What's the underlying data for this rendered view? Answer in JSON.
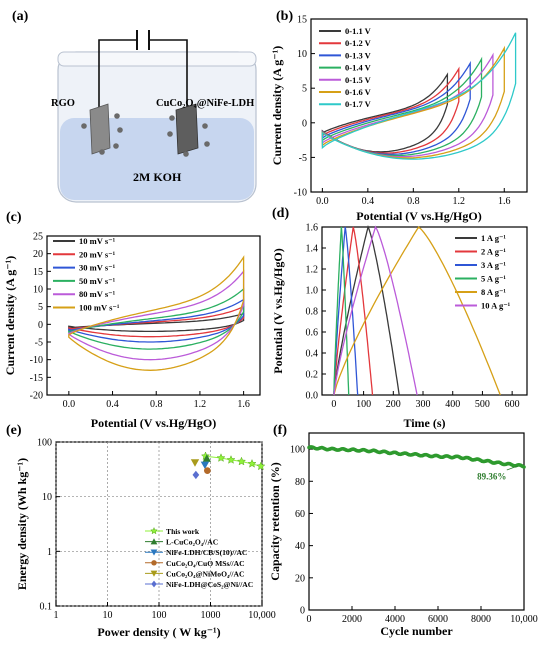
{
  "panel_labels": [
    "(a)",
    "(b)",
    "(c)",
    "(d)",
    "(e)",
    "(f)"
  ],
  "panel_a": {
    "electrode_left": "RGO",
    "electrode_right": "CuCo₂O₄@NiFe-LDH",
    "electrolyte": "2M KOH"
  },
  "colors": {
    "cv_b": [
      "#3a3a3a",
      "#e3383c",
      "#2f56d6",
      "#2bb061",
      "#bb5bd9",
      "#d6a017",
      "#2ec9c9"
    ],
    "scan": [
      "#3a3a3a",
      "#e3383c",
      "#2f56d6",
      "#2bb061",
      "#bb5bd9",
      "#d6a017"
    ],
    "gcd": [
      "#3a3a3a",
      "#e3383c",
      "#2f56d6",
      "#2bb061",
      "#d6a017",
      "#bb5bd9"
    ],
    "ragone": [
      "#8ff23a",
      "#2f7d2f",
      "#2a78c0",
      "#b36a2a",
      "#a99b1c",
      "#5a6fd0"
    ],
    "cycle": "#2e9a2e",
    "frame": "#000000"
  },
  "chart_data": [
    {
      "panel": "(b)",
      "type": "line",
      "xlabel": "Potential (V vs.Hg/HgO)",
      "ylabel": "Current density (A g⁻¹)",
      "xlim": [
        -0.1,
        1.8
      ],
      "ylim": [
        -10,
        15
      ],
      "xticks": [
        "0.0",
        "0.4",
        "0.8",
        "1.2",
        "1.6"
      ],
      "xtick_values": [
        0.0,
        0.4,
        0.8,
        1.2,
        1.6
      ],
      "yticks": [
        "-10",
        "-5",
        "0",
        "5",
        "10",
        "15"
      ],
      "ytick_values": [
        -10,
        -5,
        0,
        5,
        10,
        15
      ],
      "legend_position": "top-left",
      "series": [
        {
          "name": "0-1.1 V",
          "vmax": 1.1,
          "i_max": 7.0
        },
        {
          "name": "0-1.2 V",
          "vmax": 1.2,
          "i_max": 7.8
        },
        {
          "name": "0-1.3 V",
          "vmax": 1.3,
          "i_max": 8.6
        },
        {
          "name": "0-1.4 V",
          "vmax": 1.4,
          "i_max": 9.2
        },
        {
          "name": "0-1.5 V",
          "vmax": 1.5,
          "i_max": 9.8
        },
        {
          "name": "0-1.6 V",
          "vmax": 1.6,
          "i_max": 10.8
        },
        {
          "name": "0-1.7 V",
          "vmax": 1.7,
          "i_max": 13.0
        }
      ]
    },
    {
      "panel": "(c)",
      "type": "line",
      "xlabel": "Potential (V vs.Hg/HgO)",
      "ylabel": "Current density (A g⁻¹)",
      "xlim": [
        -0.2,
        1.75
      ],
      "ylim": [
        -20,
        25
      ],
      "xticks": [
        "0.0",
        "0.4",
        "0.8",
        "1.2",
        "1.6"
      ],
      "xtick_values": [
        0.0,
        0.4,
        0.8,
        1.2,
        1.6
      ],
      "yticks": [
        "-20",
        "-15",
        "-10",
        "-5",
        "0",
        "5",
        "10",
        "15",
        "20",
        "25"
      ],
      "ytick_values": [
        -20,
        -15,
        -10,
        -5,
        0,
        5,
        10,
        15,
        20,
        25
      ],
      "legend_position": "top-left",
      "series": [
        {
          "name": "10 mV s⁻¹",
          "i_max": 3.0,
          "i_min": -2.0
        },
        {
          "name": "20 mV s⁻¹",
          "i_max": 5.0,
          "i_min": -3.5
        },
        {
          "name": "30 mV s⁻¹",
          "i_max": 7.0,
          "i_min": -5.0
        },
        {
          "name": "50 mV s⁻¹",
          "i_max": 10.0,
          "i_min": -7.0
        },
        {
          "name": "80 mV s⁻¹",
          "i_max": 15.0,
          "i_min": -10.0
        },
        {
          "name": "100 mV s⁻¹",
          "i_max": 19.0,
          "i_min": -13.0
        }
      ]
    },
    {
      "panel": "(d)",
      "type": "line",
      "xlabel": "Time (s)",
      "ylabel": "Potential (V vs.Hg/HgO)",
      "xlim": [
        -40,
        650
      ],
      "ylim": [
        0.0,
        1.6
      ],
      "xticks": [
        "0",
        "100",
        "200",
        "300",
        "400",
        "500",
        "600"
      ],
      "xtick_values": [
        0,
        100,
        200,
        300,
        400,
        500,
        600
      ],
      "yticks": [
        "0.0",
        "0.2",
        "0.4",
        "0.6",
        "0.8",
        "1.0",
        "1.2",
        "1.4",
        "1.6"
      ],
      "ytick_values": [
        0.0,
        0.2,
        0.4,
        0.6,
        0.8,
        1.0,
        1.2,
        1.4,
        1.6
      ],
      "legend_position": "top-right",
      "series": [
        {
          "name": "1 A g⁻¹",
          "t_peak": 115,
          "t_end": 220
        },
        {
          "name": "2 A g⁻¹",
          "t_peak": 65,
          "t_end": 130
        },
        {
          "name": "3 A g⁻¹",
          "t_peak": 38,
          "t_end": 80
        },
        {
          "name": "5 A g⁻¹",
          "t_peak": 25,
          "t_end": 50
        },
        {
          "name": "8 A g⁻¹",
          "t_peak": 285,
          "t_end": 560
        },
        {
          "name": "10 A g⁻¹",
          "t_peak": 140,
          "t_end": 280
        }
      ]
    },
    {
      "panel": "(e)",
      "type": "scatter",
      "xlabel": "Power density ( W kg⁻¹)",
      "ylabel": "Energy density (Wh kg⁻¹)",
      "x_scale": "log",
      "y_scale": "log",
      "xlim": [
        1,
        10000
      ],
      "ylim": [
        0.1,
        100
      ],
      "xticks": [
        "1",
        "10",
        "100",
        "1000",
        "10,000"
      ],
      "xtick_values": [
        1,
        10,
        100,
        1000,
        10000
      ],
      "yticks": [
        "0.1",
        "1",
        "10",
        "100"
      ],
      "ytick_values": [
        0.1,
        1,
        10,
        100
      ],
      "grid": true,
      "legend_position": "bottom-right",
      "series": [
        {
          "name": "This work",
          "marker": "star",
          "points": [
            [
              800,
              55
            ],
            [
              1600,
              51
            ],
            [
              2500,
              47
            ],
            [
              4000,
              44
            ],
            [
              6400,
              40
            ],
            [
              9500,
              36
            ]
          ]
        },
        {
          "name": "L-CuCo₂O₄//AC",
          "marker": "triangle-up",
          "points": [
            [
              850,
              50
            ]
          ]
        },
        {
          "name": "NiFe-LDH/CB/S(10)//AC",
          "marker": "triangle-down",
          "points": [
            [
              780,
              38
            ]
          ]
        },
        {
          "name": "CuCo₂O₄/CuO MSs//AC",
          "marker": "circle",
          "points": [
            [
              870,
              30
            ]
          ]
        },
        {
          "name": "CuCo₂O₄@NiMoO₄//AC",
          "marker": "triangle-down",
          "points": [
            [
              500,
              42
            ]
          ]
        },
        {
          "name": "NiFe-LDH@CoS₂@Ni//AC",
          "marker": "diamond",
          "points": [
            [
              520,
              25
            ]
          ]
        }
      ]
    },
    {
      "panel": "(f)",
      "type": "line",
      "xlabel": "Cycle number",
      "ylabel": "Capacity retention (%)",
      "xlim": [
        0,
        10000
      ],
      "ylim": [
        0,
        110
      ],
      "xticks": [
        "0",
        "2000",
        "4000",
        "6000",
        "8000",
        "10,000"
      ],
      "xtick_values": [
        0,
        2000,
        4000,
        6000,
        8000,
        10000
      ],
      "yticks": [
        "0",
        "20",
        "40",
        "60",
        "80",
        "100"
      ],
      "ytick_values": [
        0,
        20,
        40,
        60,
        80,
        100
      ],
      "series": [
        {
          "points": [
            [
              0,
              101
            ],
            [
              1000,
              100
            ],
            [
              2000,
              99.5
            ],
            [
              3000,
              98.8
            ],
            [
              4000,
              97.5
            ],
            [
              5000,
              96.5
            ],
            [
              6000,
              95.5
            ],
            [
              7000,
              95.0
            ],
            [
              8000,
              93.0
            ],
            [
              9000,
              91.0
            ],
            [
              10000,
              89.36
            ]
          ]
        }
      ],
      "annotation": "89.36%"
    }
  ]
}
